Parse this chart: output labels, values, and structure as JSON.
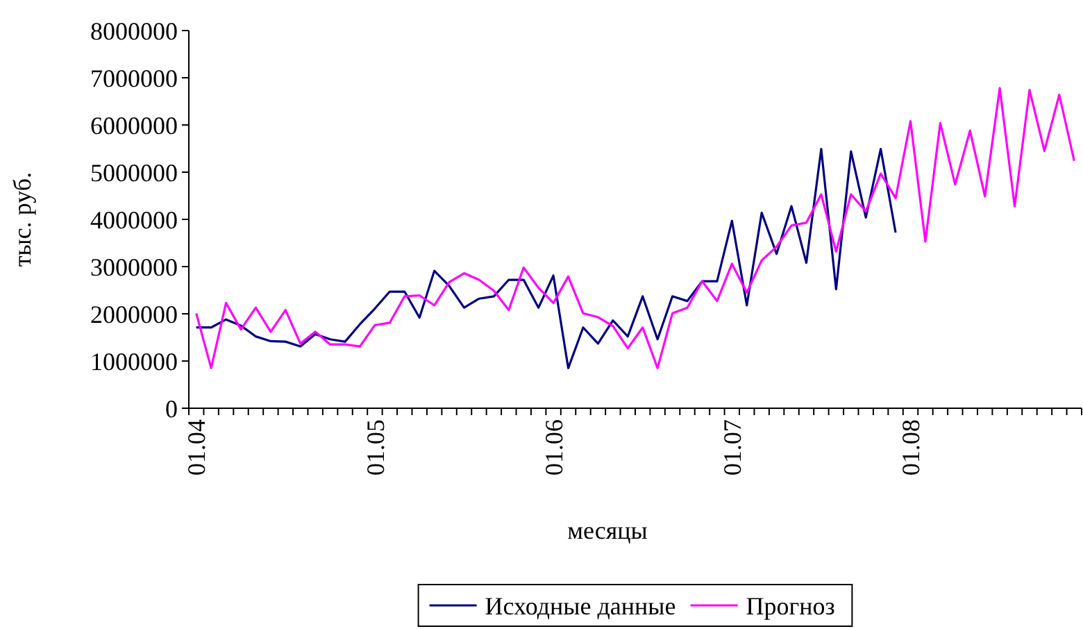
{
  "chart_data": {
    "type": "line",
    "xlabel": "месяцы",
    "ylabel": "тыс. руб.",
    "categories": [
      "01.04",
      null,
      null,
      null,
      null,
      null,
      null,
      null,
      null,
      null,
      null,
      null,
      "01.05",
      null,
      null,
      null,
      null,
      null,
      null,
      null,
      null,
      null,
      null,
      null,
      "01.06",
      null,
      null,
      null,
      null,
      null,
      null,
      null,
      null,
      null,
      null,
      null,
      "01.07",
      null,
      null,
      null,
      null,
      null,
      null,
      null,
      null,
      null,
      null,
      null,
      "01.08",
      null,
      null,
      null,
      null,
      null,
      null,
      null,
      null,
      null,
      null,
      null
    ],
    "series": [
      {
        "name": "Исходные данные",
        "color": "#000080",
        "values": [
          1710000,
          1710000,
          1880000,
          1750000,
          1520000,
          1420000,
          1410000,
          1310000,
          1570000,
          1460000,
          1410000,
          1780000,
          2110000,
          2470000,
          2470000,
          1920000,
          2910000,
          2590000,
          2130000,
          2320000,
          2370000,
          2720000,
          2720000,
          2130000,
          2810000,
          850000,
          1710000,
          1370000,
          1860000,
          1520000,
          2370000,
          1460000,
          2370000,
          2270000,
          2690000,
          2690000,
          3970000,
          2180000,
          4140000,
          3270000,
          4280000,
          3080000,
          5490000,
          2520000,
          5440000,
          4040000,
          5490000,
          3720000,
          null,
          null,
          null,
          null,
          null,
          null,
          null,
          null,
          null,
          null,
          null,
          null
        ]
      },
      {
        "name": "Прогноз",
        "color": "#ff00ff",
        "values": [
          2010000,
          850000,
          2230000,
          1670000,
          2130000,
          1620000,
          2080000,
          1370000,
          1620000,
          1350000,
          1350000,
          1310000,
          1760000,
          1810000,
          2370000,
          2390000,
          2180000,
          2670000,
          2860000,
          2720000,
          2490000,
          2080000,
          2980000,
          2550000,
          2230000,
          2790000,
          2010000,
          1930000,
          1740000,
          1270000,
          1710000,
          850000,
          2010000,
          2130000,
          2690000,
          2270000,
          3060000,
          2450000,
          3130000,
          3420000,
          3870000,
          3930000,
          4530000,
          3320000,
          4530000,
          4170000,
          4970000,
          4450000,
          6080000,
          3530000,
          6040000,
          4740000,
          5880000,
          4490000,
          6780000,
          4280000,
          6740000,
          5450000,
          6640000,
          5240000
        ]
      }
    ],
    "ylim": [
      0,
      8000000
    ],
    "yticks": [
      0,
      1000000,
      2000000,
      3000000,
      4000000,
      5000000,
      6000000,
      7000000,
      8000000
    ],
    "grid": false,
    "legend": "bottom",
    "marker": "none",
    "line_style": "solid"
  }
}
